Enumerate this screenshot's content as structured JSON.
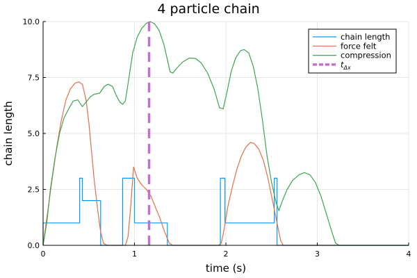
{
  "chart_data": {
    "type": "line",
    "title": "4 particle chain",
    "xlabel": "time (s)",
    "ylabel": "chain length",
    "xlim": [
      0,
      4
    ],
    "ylim": [
      0,
      10
    ],
    "x_ticks": [
      0,
      1,
      2,
      3,
      4
    ],
    "x_tick_labels": [
      "0",
      "1",
      "2",
      "3",
      "4"
    ],
    "y_ticks": [
      0,
      2.5,
      5,
      7.5,
      10
    ],
    "y_tick_labels": [
      "0.0",
      "2.5",
      "5.0",
      "7.5",
      "10.0"
    ],
    "grid": true,
    "legend_position": "top-right",
    "series": [
      {
        "name": "chain length",
        "color": "#009AFA",
        "style": "step",
        "points": [
          [
            0,
            0
          ],
          [
            0,
            1
          ],
          [
            0.4,
            1
          ],
          [
            0.4,
            3
          ],
          [
            0.43,
            3
          ],
          [
            0.43,
            2
          ],
          [
            0.63,
            2
          ],
          [
            0.63,
            0
          ],
          [
            0.87,
            0
          ],
          [
            0.87,
            3
          ],
          [
            1.0,
            3
          ],
          [
            1.0,
            1
          ],
          [
            1.36,
            1
          ],
          [
            1.36,
            0
          ],
          [
            1.94,
            0
          ],
          [
            1.94,
            3
          ],
          [
            1.99,
            3
          ],
          [
            1.99,
            1
          ],
          [
            2.53,
            1
          ],
          [
            2.53,
            3
          ],
          [
            2.56,
            3
          ],
          [
            2.56,
            0
          ],
          [
            4,
            0
          ]
        ]
      },
      {
        "name": "force felt",
        "color": "#E26F46",
        "style": "line",
        "points": [
          [
            0,
            0
          ],
          [
            0.05,
            1.5
          ],
          [
            0.1,
            3.0
          ],
          [
            0.15,
            4.4
          ],
          [
            0.2,
            5.6
          ],
          [
            0.25,
            6.5
          ],
          [
            0.3,
            7.0
          ],
          [
            0.35,
            7.25
          ],
          [
            0.39,
            7.3
          ],
          [
            0.43,
            7.2
          ],
          [
            0.47,
            6.5
          ],
          [
            0.5,
            5.5
          ],
          [
            0.53,
            4.2
          ],
          [
            0.56,
            2.9
          ],
          [
            0.6,
            1.5
          ],
          [
            0.63,
            0.6
          ],
          [
            0.66,
            0.1
          ],
          [
            0.7,
            0
          ],
          [
            0.9,
            0
          ],
          [
            0.93,
            0.4
          ],
          [
            0.96,
            1.8
          ],
          [
            0.99,
            3.5
          ],
          [
            1.03,
            3.0
          ],
          [
            1.08,
            2.7
          ],
          [
            1.13,
            2.5
          ],
          [
            1.18,
            2.2
          ],
          [
            1.23,
            1.7
          ],
          [
            1.28,
            1.2
          ],
          [
            1.33,
            0.6
          ],
          [
            1.38,
            0.1
          ],
          [
            1.42,
            0
          ],
          [
            1.92,
            0
          ],
          [
            1.95,
            0.1
          ],
          [
            1.98,
            0.7
          ],
          [
            2.02,
            1.7
          ],
          [
            2.07,
            2.6
          ],
          [
            2.12,
            3.4
          ],
          [
            2.17,
            4.0
          ],
          [
            2.22,
            4.4
          ],
          [
            2.27,
            4.6
          ],
          [
            2.31,
            4.55
          ],
          [
            2.36,
            4.3
          ],
          [
            2.41,
            3.8
          ],
          [
            2.46,
            3.0
          ],
          [
            2.51,
            2.0
          ],
          [
            2.56,
            1.0
          ],
          [
            2.6,
            0.2
          ],
          [
            2.63,
            0
          ],
          [
            4,
            0
          ]
        ]
      },
      {
        "name": "compression",
        "color": "#3EA44E",
        "style": "line",
        "points": [
          [
            0,
            0
          ],
          [
            0.04,
            1.0
          ],
          [
            0.08,
            2.5
          ],
          [
            0.13,
            3.9
          ],
          [
            0.18,
            5.0
          ],
          [
            0.23,
            5.7
          ],
          [
            0.28,
            6.1
          ],
          [
            0.33,
            6.45
          ],
          [
            0.38,
            6.5
          ],
          [
            0.43,
            6.2
          ],
          [
            0.47,
            6.4
          ],
          [
            0.52,
            6.65
          ],
          [
            0.56,
            6.75
          ],
          [
            0.62,
            6.8
          ],
          [
            0.67,
            7.1
          ],
          [
            0.71,
            7.2
          ],
          [
            0.76,
            7.1
          ],
          [
            0.8,
            6.7
          ],
          [
            0.84,
            6.4
          ],
          [
            0.87,
            6.3
          ],
          [
            0.9,
            6.45
          ],
          [
            0.94,
            7.5
          ],
          [
            0.98,
            8.6
          ],
          [
            1.03,
            9.3
          ],
          [
            1.08,
            9.7
          ],
          [
            1.13,
            9.92
          ],
          [
            1.17,
            10.0
          ],
          [
            1.22,
            9.9
          ],
          [
            1.27,
            9.6
          ],
          [
            1.32,
            9.0
          ],
          [
            1.36,
            8.3
          ],
          [
            1.39,
            7.75
          ],
          [
            1.42,
            7.7
          ],
          [
            1.47,
            7.95
          ],
          [
            1.53,
            8.2
          ],
          [
            1.6,
            8.37
          ],
          [
            1.67,
            8.35
          ],
          [
            1.73,
            8.15
          ],
          [
            1.8,
            7.7
          ],
          [
            1.87,
            7.0
          ],
          [
            1.93,
            6.15
          ],
          [
            1.97,
            6.1
          ],
          [
            2.01,
            6.8
          ],
          [
            2.06,
            7.8
          ],
          [
            2.11,
            8.4
          ],
          [
            2.16,
            8.7
          ],
          [
            2.2,
            8.75
          ],
          [
            2.25,
            8.6
          ],
          [
            2.3,
            8.0
          ],
          [
            2.35,
            7.0
          ],
          [
            2.4,
            5.6
          ],
          [
            2.45,
            4.0
          ],
          [
            2.5,
            2.8
          ],
          [
            2.55,
            1.9
          ],
          [
            2.58,
            1.55
          ],
          [
            2.62,
            2.0
          ],
          [
            2.67,
            2.5
          ],
          [
            2.73,
            2.9
          ],
          [
            2.8,
            3.15
          ],
          [
            2.86,
            3.25
          ],
          [
            2.92,
            3.15
          ],
          [
            2.98,
            2.8
          ],
          [
            3.04,
            2.2
          ],
          [
            3.1,
            1.4
          ],
          [
            3.16,
            0.6
          ],
          [
            3.2,
            0.1
          ],
          [
            3.24,
            0
          ],
          [
            4,
            0
          ]
        ]
      }
    ],
    "vline": {
      "name": "t",
      "subscript": "Δx",
      "x": 1.16,
      "color": "#C271D2",
      "style": "dashed"
    }
  }
}
